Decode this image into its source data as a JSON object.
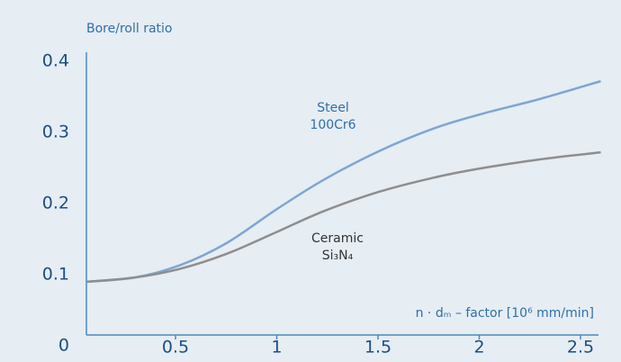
{
  "chart_data": {
    "type": "line",
    "y_axis_label": "Bore/roll ratio",
    "x_axis_label": "n · dₘ – factor [10⁶ mm/min]",
    "x": [
      0.06,
      0.3,
      0.52,
      0.75,
      1.0,
      1.23,
      1.5,
      1.77,
      2.0,
      2.3,
      2.6
    ],
    "series": [
      {
        "name": [
          "Steel",
          "100Cr6"
        ],
        "color": "#7fa6cf",
        "values": [
          0.09,
          0.096,
          0.113,
          0.144,
          0.192,
          0.233,
          0.273,
          0.305,
          0.325,
          0.347,
          0.372
        ]
      },
      {
        "name": [
          "Ceramic",
          "Si₃N₄"
        ],
        "color": "#8e8e8e",
        "values": [
          0.09,
          0.096,
          0.108,
          0.129,
          0.16,
          0.189,
          0.216,
          0.236,
          0.249,
          0.262,
          0.272
        ]
      }
    ],
    "xlim": [
      0,
      2.6
    ],
    "ylim": [
      0,
      0.4
    ],
    "xticks": [
      0.5,
      1,
      1.5,
      2,
      2.5
    ],
    "yticks": [
      0,
      0.1,
      0.2,
      0.3,
      0.4
    ],
    "grid": false
  }
}
